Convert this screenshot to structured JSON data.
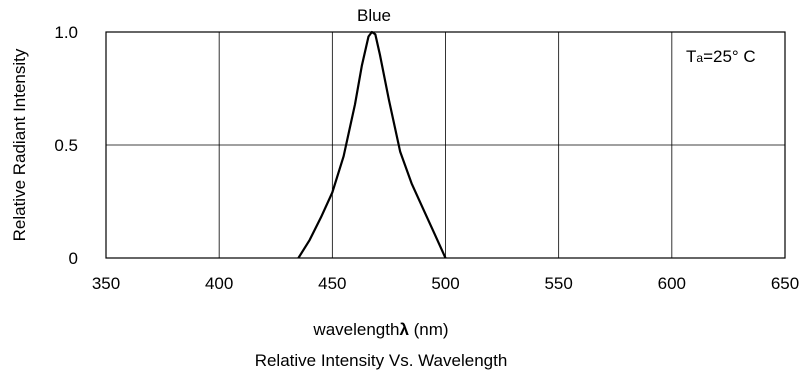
{
  "chart_data": {
    "type": "line",
    "series_label": "Blue",
    "annotation": {
      "main": "T",
      "sub": "a",
      "rest": "=25° C"
    },
    "xlabel": {
      "prefix": "wavelength",
      "symbol": "λ",
      "suffix": " (nm)"
    },
    "ylabel": "Relative Radiant Intensity",
    "caption": "Relative Intensity Vs. Wavelength",
    "xlim": [
      350,
      650
    ],
    "ylim": [
      0,
      1.0
    ],
    "x_ticks": [
      350,
      400,
      450,
      500,
      550,
      600,
      650
    ],
    "x_tick_labels": [
      "350",
      "400",
      "450",
      "500",
      "550",
      "600",
      "650"
    ],
    "y_ticks": [
      0,
      0.5,
      1.0
    ],
    "y_tick_labels": [
      "0",
      "0.5",
      "1.0"
    ],
    "grid": true,
    "series": [
      {
        "x": [
          435,
          440,
          445,
          450,
          455,
          460,
          463,
          466,
          467.5,
          469,
          471,
          475,
          480,
          485,
          490,
          495,
          500
        ],
        "y": [
          0.0,
          0.08,
          0.18,
          0.29,
          0.45,
          0.68,
          0.85,
          0.98,
          1.0,
          0.99,
          0.9,
          0.7,
          0.47,
          0.33,
          0.22,
          0.11,
          0.0
        ]
      }
    ]
  }
}
